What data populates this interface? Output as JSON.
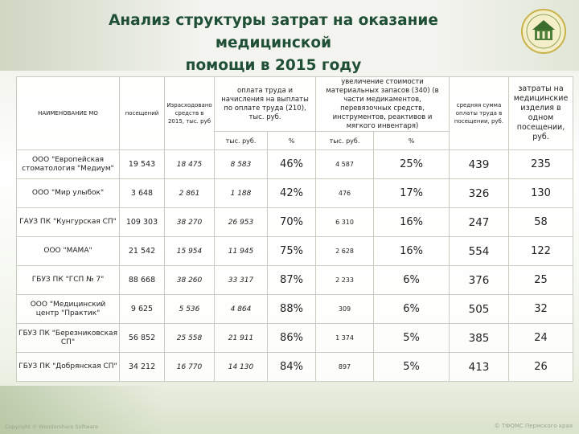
{
  "slide": {
    "title_line1": "Анализ структуры затрат на оказание медицинской",
    "title_line2": "помощи в 2015 году",
    "footer_left": "Copyright © Wondershare Software",
    "footer_right": "© ТФОМС Пермского края"
  },
  "table": {
    "headers": {
      "name": "НАИМЕНОВАНИЕ МО",
      "visits": "посещений",
      "spent": "Израсходовано средств в 2015, тыс. руб",
      "salary": "оплата труда и начисления на выплаты по оплате труда (210), тыс. руб.",
      "supplies": "увеличение стоимости материальных запасов (340) (в части медикаментов, перевязочных средств, инструментов, реактивов и мягкого инвентаря)",
      "avg_salary": "средняя сумма оплаты труда в посещении, руб.",
      "supplies_per_visit": "затраты на медицинские изделия в одном посещении, руб."
    },
    "subheaders": {
      "salary_rub": "тыс. руб.",
      "salary_pct": "%",
      "supplies_rub": "тыс. руб.",
      "supplies_pct": "%"
    },
    "rows": [
      {
        "name": "ООО \"Европейская стоматология \"Медиум\"",
        "visits": "19 543",
        "spent": "18 475",
        "salary": "8 583",
        "salary_pct": "46%",
        "supplies": "4 587",
        "supplies_pct": "25%",
        "avg_salary": "439",
        "per_visit": "235"
      },
      {
        "name": "ООО \"Мир улыбок\"",
        "visits": "3 648",
        "spent": "2 861",
        "salary": "1 188",
        "salary_pct": "42%",
        "supplies": "476",
        "supplies_pct": "17%",
        "avg_salary": "326",
        "per_visit": "130"
      },
      {
        "name": "ГАУЗ ПК \"Кунгурская СП\"",
        "visits": "109 303",
        "spent": "38 270",
        "salary": "26 953",
        "salary_pct": "70%",
        "supplies": "6 310",
        "supplies_pct": "16%",
        "avg_salary": "247",
        "per_visit": "58"
      },
      {
        "name": "ООО \"МАМА\"",
        "visits": "21 542",
        "spent": "15 954",
        "salary": "11 945",
        "salary_pct": "75%",
        "supplies": "2 628",
        "supplies_pct": "16%",
        "avg_salary": "554",
        "per_visit": "122"
      },
      {
        "name": "ГБУЗ ПК \"ГСП № 7\"",
        "visits": "88 668",
        "spent": "38 260",
        "salary": "33 317",
        "salary_pct": "87%",
        "supplies": "2 233",
        "supplies_pct": "6%",
        "avg_salary": "376",
        "per_visit": "25"
      },
      {
        "name": "ООО \"Медицинский центр \"Практик\"",
        "visits": "9 625",
        "spent": "5 536",
        "salary": "4 864",
        "salary_pct": "88%",
        "supplies": "309",
        "supplies_pct": "6%",
        "avg_salary": "505",
        "per_visit": "32"
      },
      {
        "name": "ГБУЗ ПК \"Березниковская СП\"",
        "visits": "56 852",
        "spent": "25 558",
        "salary": "21 911",
        "salary_pct": "86%",
        "supplies": "1 374",
        "supplies_pct": "5%",
        "avg_salary": "385",
        "per_visit": "24"
      },
      {
        "name": "ГБУЗ ПК \"Добрянская СП\"",
        "visits": "34 212",
        "spent": "16 770",
        "salary": "14 130",
        "salary_pct": "84%",
        "supplies": "897",
        "supplies_pct": "5%",
        "avg_salary": "413",
        "per_visit": "26"
      }
    ]
  },
  "colors": {
    "title": "#1f4f35",
    "result": "#3b7d24",
    "percent": "#2a6b2e"
  }
}
